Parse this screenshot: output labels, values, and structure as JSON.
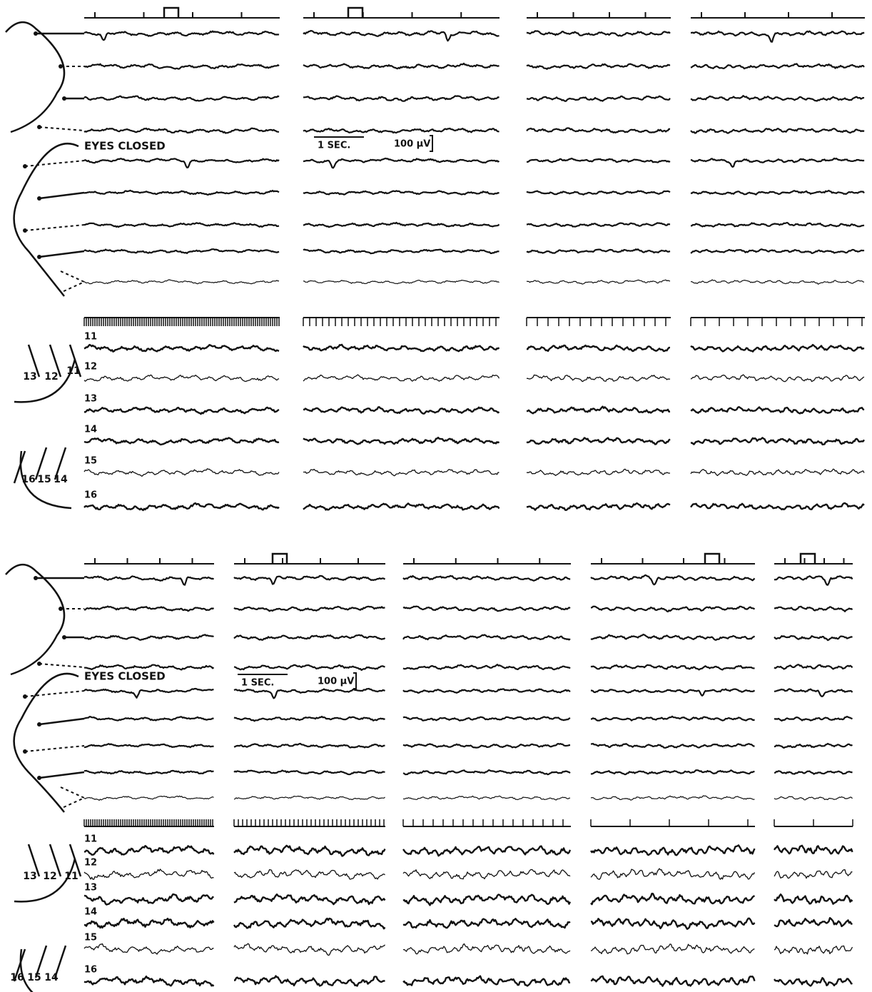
{
  "panels": [
    {
      "annotation": "EYES CLOSED",
      "scale": {
        "time": "1 SEC.",
        "amplitude": "100 μV"
      },
      "channel_labels": [
        "11",
        "12",
        "13",
        "14",
        "15",
        "16"
      ],
      "diagram_labels": [
        "13",
        "12",
        "11",
        "16",
        "15",
        "14"
      ]
    },
    {
      "annotation": "EYES CLOSED",
      "scale": {
        "time": "1 SEC.",
        "amplitude": "100 μV"
      },
      "channel_labels": [
        "11",
        "12",
        "13",
        "14",
        "15",
        "16"
      ],
      "diagram_labels": [
        "13",
        "12",
        "11",
        "16",
        "15",
        "14"
      ]
    }
  ]
}
